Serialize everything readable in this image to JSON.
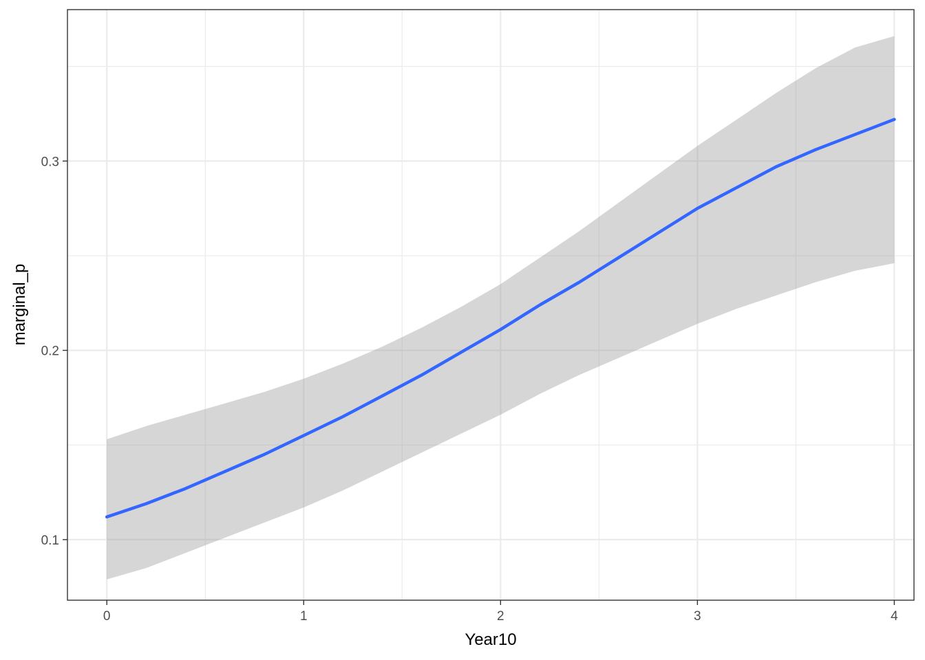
{
  "chart_data": {
    "type": "line",
    "title": "",
    "xlabel": "Year10",
    "ylabel": "marginal_p",
    "xlim": [
      -0.2,
      4.1
    ],
    "ylim": [
      0.068,
      0.38
    ],
    "x_ticks": [
      0,
      1,
      2,
      3,
      4
    ],
    "x_tick_labels": [
      "0",
      "1",
      "2",
      "3",
      "4"
    ],
    "y_ticks": [
      0.1,
      0.2,
      0.3
    ],
    "y_tick_labels": [
      "0.1",
      "0.2",
      "0.3"
    ],
    "grid": true,
    "legend": "none",
    "colors": {
      "line": "#3366FF",
      "ribbon": "#999999",
      "grid": "#ebebeb",
      "border": "#333333"
    },
    "series": [
      {
        "x": [
          0,
          0.2,
          0.4,
          0.6,
          0.8,
          1.0,
          1.2,
          1.4,
          1.6,
          1.8,
          2.0,
          2.2,
          2.4,
          2.6,
          2.8,
          3.0,
          3.2,
          3.4,
          3.6,
          3.8,
          4.0
        ],
        "y": [
          0.112,
          0.119,
          0.127,
          0.136,
          0.145,
          0.155,
          0.165,
          0.176,
          0.187,
          0.199,
          0.211,
          0.224,
          0.236,
          0.249,
          0.262,
          0.275,
          0.286,
          0.297,
          0.306,
          0.314,
          0.322
        ],
        "lower": [
          0.079,
          0.085,
          0.093,
          0.101,
          0.109,
          0.117,
          0.126,
          0.136,
          0.146,
          0.156,
          0.166,
          0.177,
          0.187,
          0.196,
          0.205,
          0.214,
          0.222,
          0.229,
          0.236,
          0.242,
          0.246
        ],
        "upper": [
          0.153,
          0.16,
          0.166,
          0.172,
          0.178,
          0.185,
          0.193,
          0.202,
          0.212,
          0.223,
          0.235,
          0.249,
          0.263,
          0.278,
          0.293,
          0.308,
          0.322,
          0.336,
          0.349,
          0.36,
          0.366
        ]
      }
    ]
  }
}
